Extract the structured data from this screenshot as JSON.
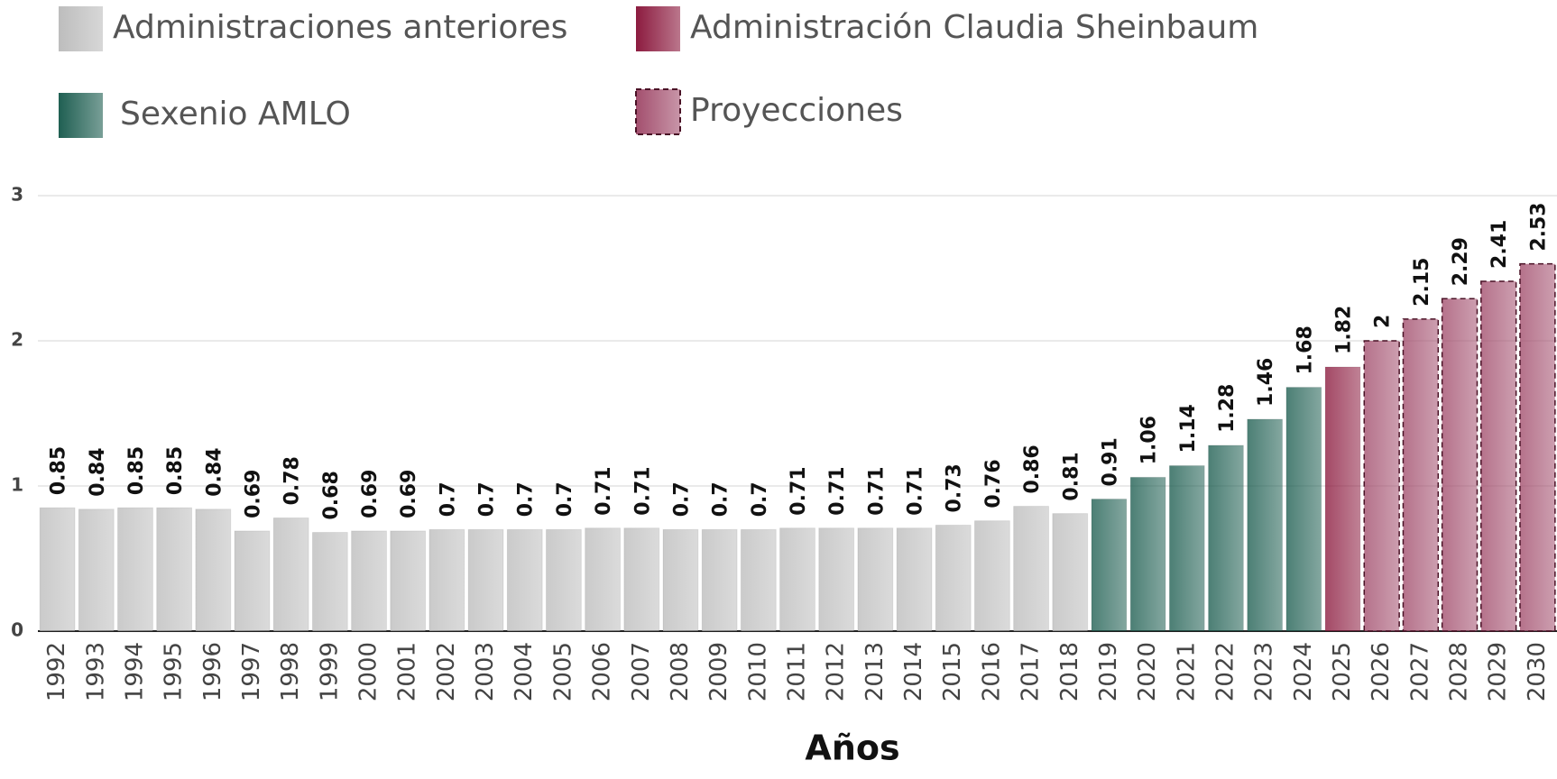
{
  "chart_data": {
    "type": "bar",
    "x_label": "Años",
    "categories": [
      "1992",
      "1993",
      "1994",
      "1995",
      "1996",
      "1997",
      "1998",
      "1999",
      "2000",
      "2001",
      "2002",
      "2003",
      "2004",
      "2005",
      "2006",
      "2007",
      "2008",
      "2009",
      "2010",
      "2011",
      "2012",
      "2013",
      "2014",
      "2015",
      "2016",
      "2017",
      "2018",
      "2019",
      "2020",
      "2021",
      "2022",
      "2023",
      "2024",
      "2025",
      "2026",
      "2027",
      "2028",
      "2029",
      "2030"
    ],
    "series": [
      {
        "name": "Administraciones anteriores",
        "color": "#bdbdbd",
        "values": [
          0.85,
          0.84,
          0.85,
          0.85,
          0.84,
          0.69,
          0.78,
          0.68,
          0.69,
          0.69,
          0.7,
          0.7,
          0.7,
          0.7,
          0.71,
          0.71,
          0.7,
          0.7,
          0.7,
          0.71,
          0.71,
          0.71,
          0.71,
          0.73,
          0.76,
          0.86,
          0.81,
          null,
          null,
          null,
          null,
          null,
          null,
          null,
          null,
          null,
          null,
          null,
          null
        ]
      },
      {
        "name": "Administración Claudia Sheinbaum",
        "color": "#8c1b3f",
        "values": [
          null,
          null,
          null,
          null,
          null,
          null,
          null,
          null,
          null,
          null,
          null,
          null,
          null,
          null,
          null,
          null,
          null,
          null,
          null,
          null,
          null,
          null,
          null,
          null,
          null,
          null,
          null,
          null,
          null,
          null,
          null,
          null,
          null,
          1.82,
          null,
          null,
          null,
          null,
          null
        ]
      },
      {
        "name": "Sexenio AMLO",
        "color": "#1f5f52",
        "values": [
          null,
          null,
          null,
          null,
          null,
          null,
          null,
          null,
          null,
          null,
          null,
          null,
          null,
          null,
          null,
          null,
          null,
          null,
          null,
          null,
          null,
          null,
          null,
          null,
          null,
          null,
          null,
          0.91,
          1.06,
          1.14,
          1.28,
          1.46,
          1.68,
          null,
          null,
          null,
          null,
          null,
          null
        ]
      },
      {
        "name": "Proyecciones",
        "color": "#a34f6e",
        "border": "dashed",
        "values": [
          null,
          null,
          null,
          null,
          null,
          null,
          null,
          null,
          null,
          null,
          null,
          null,
          null,
          null,
          null,
          null,
          null,
          null,
          null,
          null,
          null,
          null,
          null,
          null,
          null,
          null,
          null,
          null,
          null,
          null,
          null,
          null,
          null,
          null,
          2,
          2.15,
          2.29,
          2.41,
          2.53
        ]
      }
    ],
    "ylim": [
      0,
      3
    ],
    "yticks": [
      0,
      1,
      2,
      3
    ],
    "grid": true
  }
}
